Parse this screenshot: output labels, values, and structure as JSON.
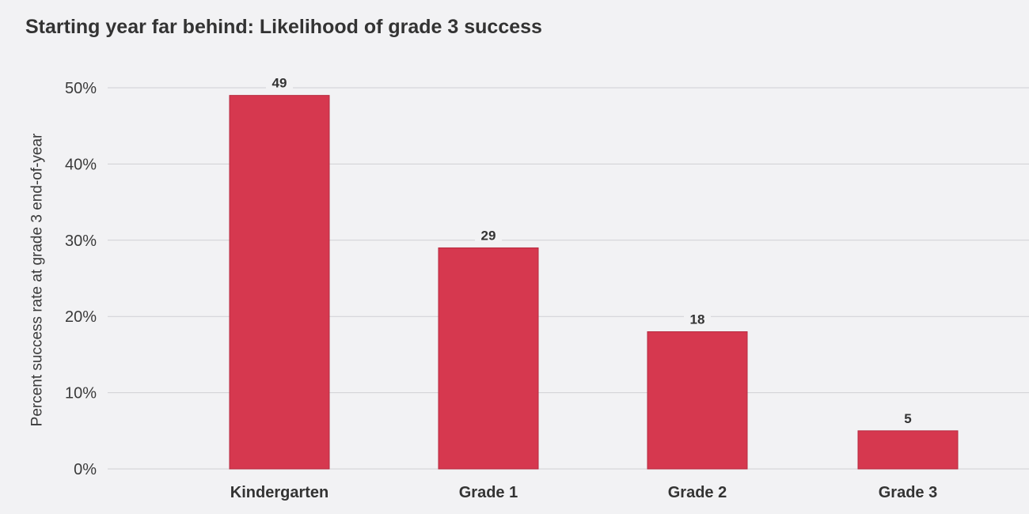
{
  "chart_data": {
    "type": "bar",
    "title": "Starting year far behind: Likelihood of grade 3 success",
    "xlabel": "",
    "ylabel": "Percent success rate at grade 3 end-of-year",
    "categories": [
      "Kindergarten",
      "Grade 1",
      "Grade 2",
      "Grade 3"
    ],
    "values": [
      49,
      29,
      18,
      5
    ],
    "data_labels": [
      "49",
      "29",
      "18",
      "5"
    ],
    "ylim": [
      0,
      50
    ],
    "yticks": [
      0,
      10,
      20,
      30,
      40,
      50
    ],
    "ytick_labels": [
      "0%",
      "10%",
      "20%",
      "30%",
      "40%",
      "50%"
    ],
    "grid": true,
    "legend": "none",
    "bar_color": "#d6384f",
    "grid_color": "#d0d0d4",
    "background": "#f2f2f4"
  }
}
